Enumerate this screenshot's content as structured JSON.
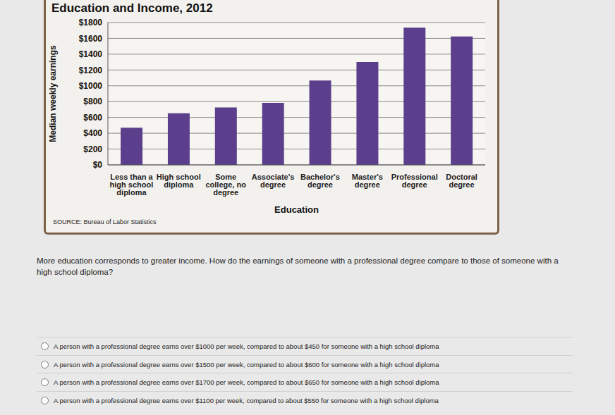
{
  "chart_data": {
    "type": "bar",
    "title": "Education and Income, 2012",
    "x_label": "Education",
    "y_label": "Median weekly earnings",
    "source": "SOURCE: Bureau of Labor Statistics",
    "categories": [
      "Less than a high school diploma",
      "High school diploma",
      "Some college, no degree",
      "Associate's degree",
      "Bachelor's degree",
      "Master's degree",
      "Professional degree",
      "Doctoral degree"
    ],
    "values": [
      471,
      652,
      727,
      785,
      1066,
      1300,
      1735,
      1624
    ],
    "color": "#5b3f8c",
    "ylim": [
      0,
      1800
    ],
    "yticks": [
      {
        "value": 0,
        "label": "$0"
      },
      {
        "value": 200,
        "label": "$200"
      },
      {
        "value": 400,
        "label": "$400"
      },
      {
        "value": 600,
        "label": "$600"
      },
      {
        "value": 800,
        "label": "$800"
      },
      {
        "value": 1000,
        "label": "$1000"
      },
      {
        "value": 1200,
        "label": "$1200"
      },
      {
        "value": 1400,
        "label": "$1400"
      },
      {
        "value": 1600,
        "label": "$1600"
      },
      {
        "value": 1800,
        "label": "$1800"
      }
    ],
    "grid": true
  },
  "question": "More education corresponds to greater income. How do the earnings of someone with a professional degree compare to those of someone with a high school diploma?",
  "options": [
    "A person with a professional degree earns over $1000 per week, compared to about $450 for someone with a high school diploma",
    "A person with a professional degree earns over $1500 per week, compared to about $600 for someone with a high school diploma",
    "A person with a professional degree earns over $1700 per week, compared to about $650 for someone with a high school diploma",
    "A person with a professional degree earns over $1100 per week, compared to about $550 for someone with a high school diploma"
  ]
}
